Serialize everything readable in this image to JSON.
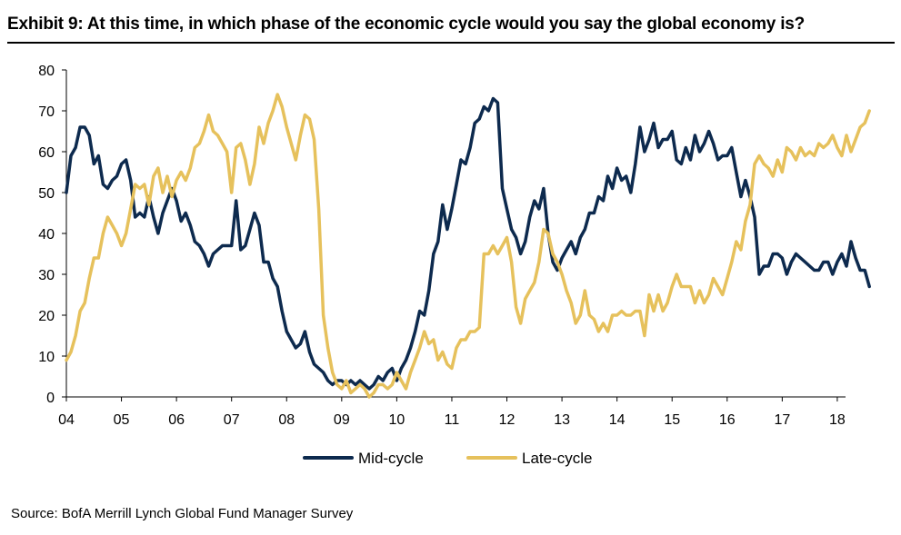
{
  "title": "Exhibit 9: At this time, in which phase of the economic cycle would you say the global economy is?",
  "source": "Source: BofA Merrill Lynch Global Fund Manager Survey",
  "chart_data": {
    "type": "line",
    "title": "Exhibit 9: At this time, in which phase of the economic cycle would you say the global economy is?",
    "xlabel": "",
    "ylabel": "",
    "xlim": [
      2004.0,
      2018.15
    ],
    "ylim": [
      0,
      80
    ],
    "y_ticks": [
      0,
      10,
      20,
      30,
      40,
      50,
      60,
      70,
      80
    ],
    "x_ticks": [
      2004,
      2005,
      2006,
      2007,
      2008,
      2009,
      2010,
      2011,
      2012,
      2013,
      2014,
      2015,
      2016,
      2017,
      2018
    ],
    "x_tick_labels": [
      "04",
      "05",
      "06",
      "07",
      "08",
      "09",
      "10",
      "11",
      "12",
      "13",
      "14",
      "15",
      "16",
      "17",
      "18"
    ],
    "grid": false,
    "legend_position": "bottom-center",
    "x_start_year": 2004.0,
    "x_step_years": 0.08333,
    "series": [
      {
        "name": "Mid-cycle",
        "color": "#0d2a4e",
        "values": [
          50,
          59,
          61,
          66,
          66,
          64,
          57,
          59,
          52,
          51,
          53,
          54,
          57,
          58,
          53,
          44,
          45,
          44,
          49,
          44,
          40,
          45,
          48,
          51,
          48,
          43,
          45,
          42,
          38,
          37,
          35,
          32,
          35,
          36,
          37,
          37,
          37,
          48,
          36,
          37,
          41,
          45,
          42,
          33,
          33,
          29,
          27,
          21,
          16,
          14,
          12,
          13,
          16,
          11,
          8,
          7,
          6,
          4,
          3,
          4,
          4,
          3,
          4,
          3,
          4,
          3,
          2,
          3,
          5,
          4,
          6,
          7,
          4,
          7,
          9,
          12,
          16,
          21,
          20,
          26,
          35,
          38,
          47,
          41,
          46,
          52,
          58,
          57,
          61,
          67,
          68,
          71,
          70,
          73,
          72,
          51,
          46,
          41,
          39,
          35,
          38,
          44,
          48,
          46,
          51,
          40,
          33,
          31,
          34,
          36,
          38,
          35,
          39,
          41,
          45,
          45,
          49,
          48,
          54,
          51,
          56,
          53,
          54,
          50,
          57,
          66,
          60,
          63,
          67,
          61,
          63,
          63,
          65,
          58,
          57,
          61,
          58,
          64,
          60,
          62,
          65,
          62,
          58,
          59,
          59,
          61,
          55,
          49,
          53,
          49,
          44,
          30,
          32,
          32,
          35,
          35,
          34,
          30,
          33,
          35,
          34,
          33,
          32,
          31,
          31,
          33,
          33,
          30,
          33,
          35,
          32,
          38,
          34,
          31,
          31,
          27
        ]
      },
      {
        "name": "Late-cycle",
        "color": "#e6c15c",
        "values": [
          9,
          11,
          15,
          21,
          23,
          29,
          34,
          34,
          40,
          44,
          42,
          40,
          37,
          40,
          46,
          52,
          51,
          52,
          47,
          54,
          56,
          50,
          54,
          49,
          53,
          55,
          53,
          56,
          61,
          62,
          65,
          69,
          65,
          64,
          62,
          60,
          50,
          61,
          62,
          58,
          52,
          57,
          66,
          62,
          67,
          70,
          74,
          71,
          66,
          62,
          58,
          64,
          69,
          68,
          63,
          46,
          20,
          12,
          6,
          3,
          2,
          4,
          1,
          2,
          3,
          2,
          0,
          1,
          3,
          3,
          2,
          3,
          6,
          4,
          2,
          6,
          9,
          12,
          16,
          13,
          14,
          9,
          11,
          8,
          7,
          12,
          14,
          14,
          16,
          16,
          17,
          35,
          35,
          37,
          35,
          37,
          39,
          33,
          22,
          18,
          24,
          26,
          28,
          33,
          41,
          40,
          35,
          33,
          30,
          26,
          23,
          18,
          20,
          26,
          20,
          19,
          16,
          18,
          16,
          20,
          20,
          21,
          20,
          20,
          21,
          21,
          15,
          25,
          21,
          25,
          21,
          23,
          27,
          30,
          27,
          27,
          27,
          23,
          26,
          23,
          25,
          29,
          27,
          25,
          29,
          33,
          38,
          36,
          43,
          47,
          57,
          59,
          57,
          56,
          54,
          58,
          55,
          61,
          60,
          58,
          61,
          59,
          60,
          59,
          62,
          61,
          62,
          64,
          61,
          59,
          64,
          60,
          63,
          66,
          67,
          70
        ]
      }
    ]
  }
}
